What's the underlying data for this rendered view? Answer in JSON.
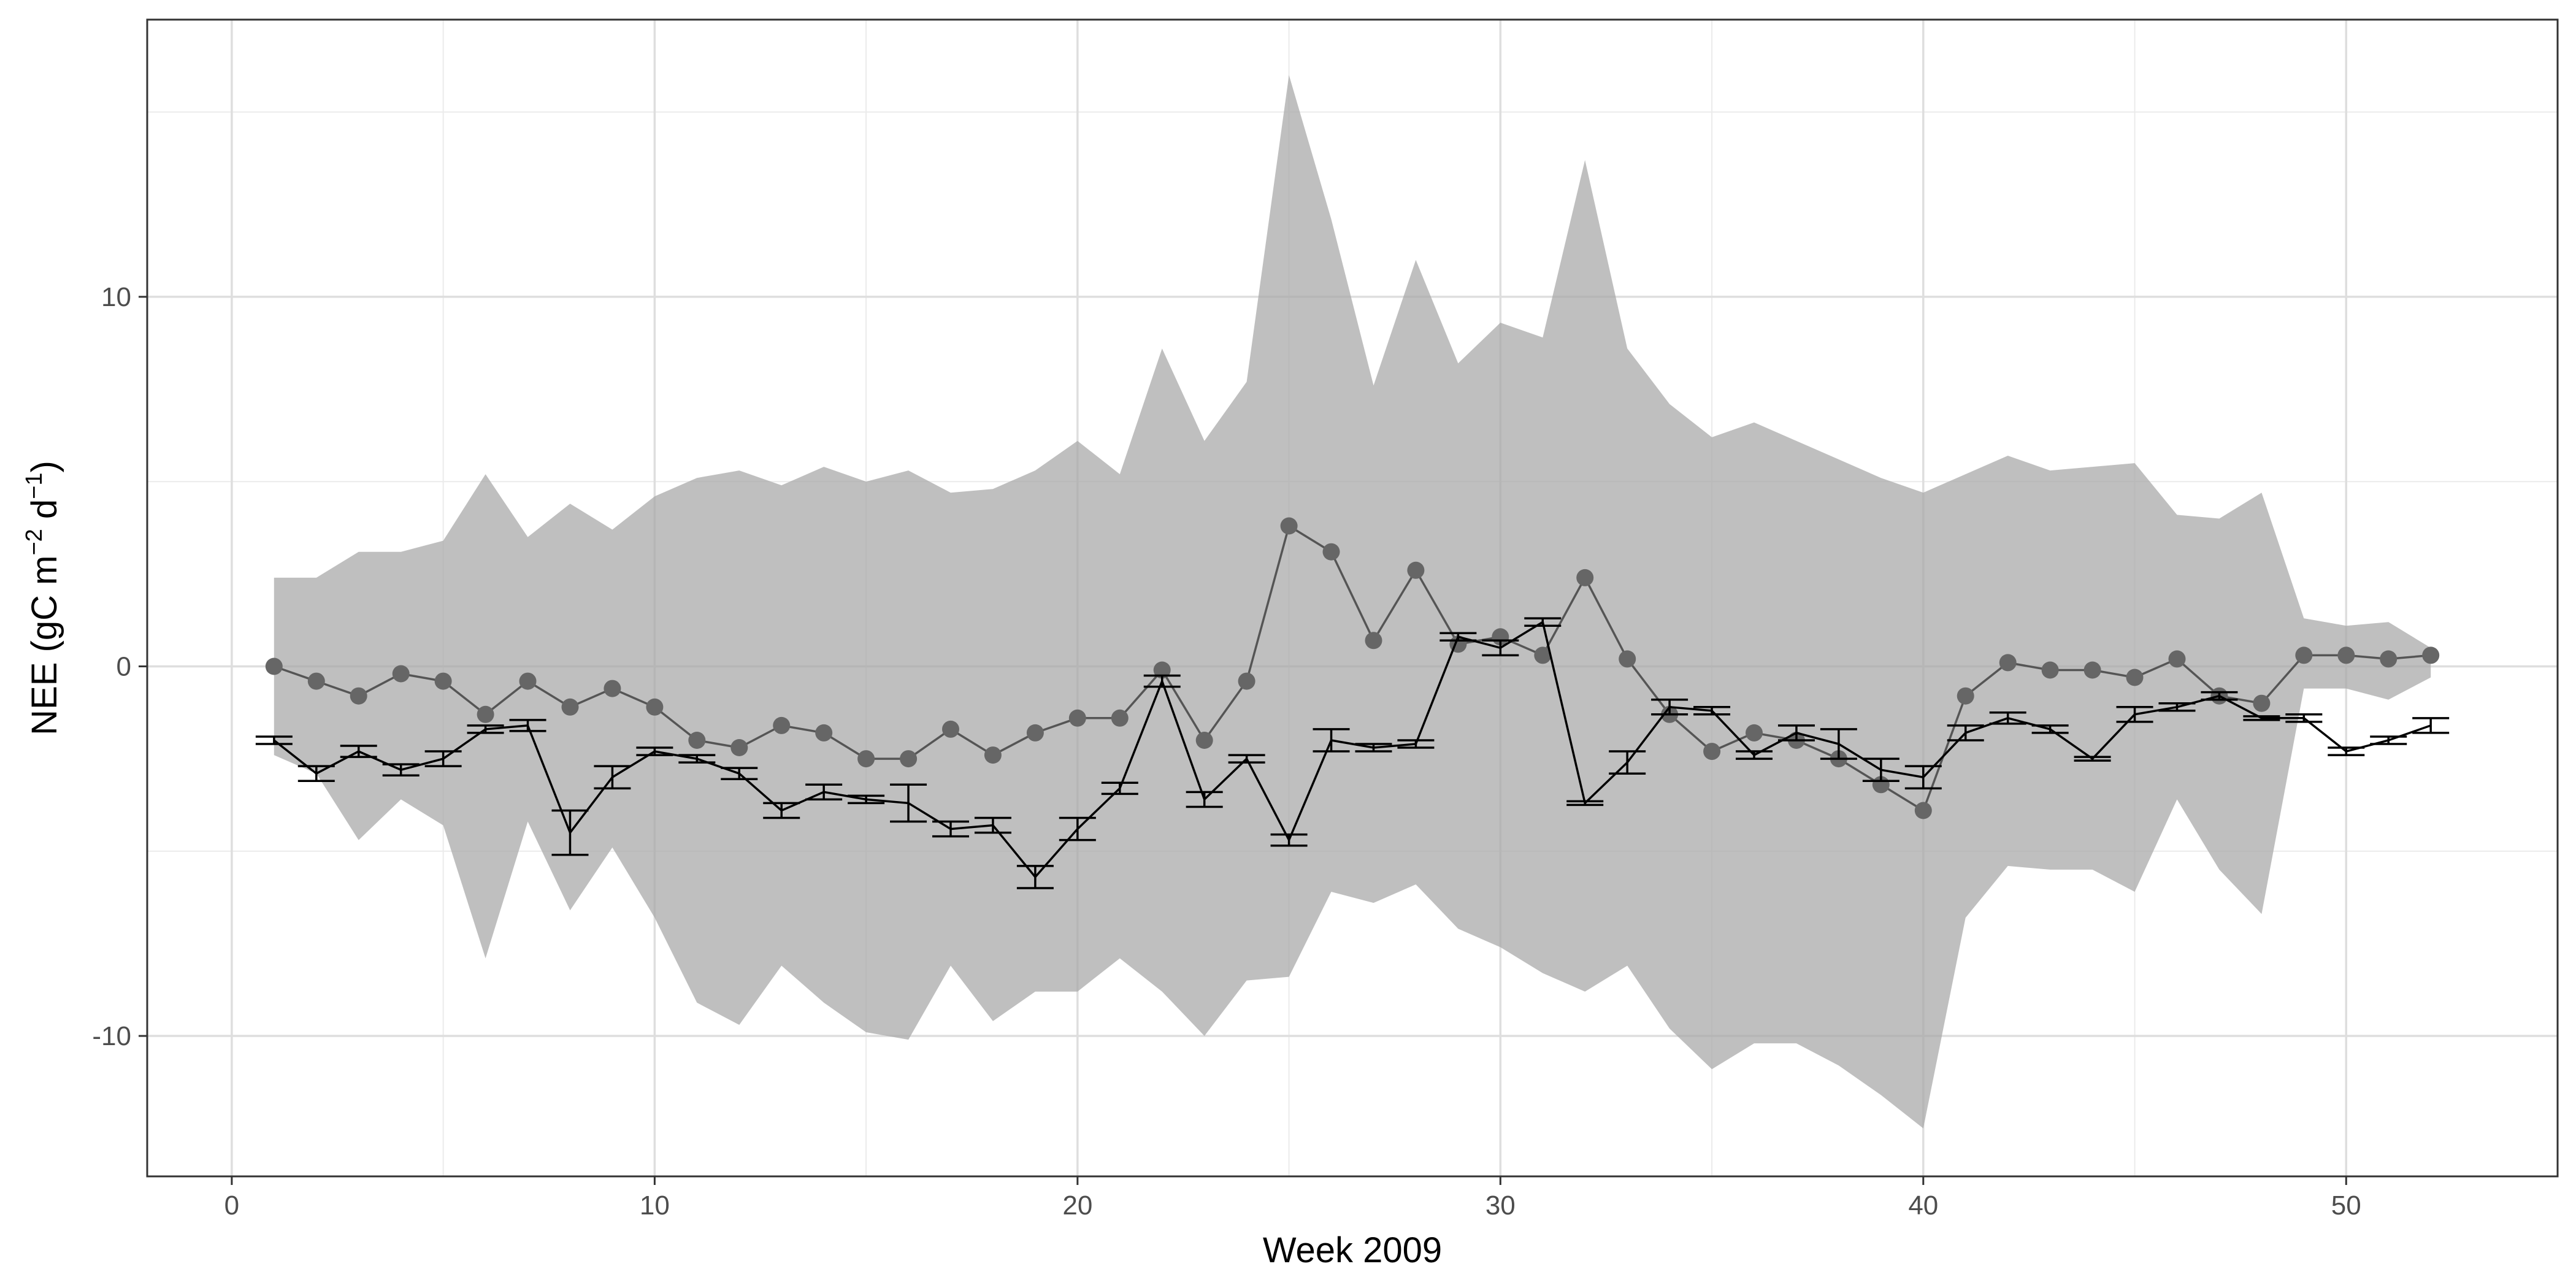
{
  "chart_data": {
    "type": "line",
    "xlabel": "Week 2009",
    "ylabel_main": "NEE (gC m",
    "ylabel_sup1": "−2",
    "ylabel_mid": " d",
    "ylabel_sup2": "−1",
    "ylabel_end": ")",
    "xlim": [
      -2,
      55
    ],
    "ylim": [
      -13.8,
      17.5
    ],
    "xticks": [
      0,
      10,
      20,
      30,
      40,
      50
    ],
    "xtick_labels": [
      "0",
      "10",
      "20",
      "30",
      "40",
      "50"
    ],
    "yticks": [
      -10,
      0,
      10
    ],
    "ytick_labels": [
      "-10",
      "0",
      "10"
    ],
    "grid": true,
    "x": [
      1,
      2,
      3,
      4,
      5,
      6,
      7,
      8,
      9,
      10,
      11,
      12,
      13,
      14,
      15,
      16,
      17,
      18,
      19,
      20,
      21,
      22,
      23,
      24,
      25,
      26,
      27,
      28,
      29,
      30,
      31,
      32,
      33,
      34,
      35,
      36,
      37,
      38,
      39,
      40,
      41,
      42,
      43,
      44,
      45,
      46,
      47,
      48,
      49,
      50,
      51,
      52
    ],
    "series": [
      {
        "kind": "band",
        "upper": [
          2.4,
          2.4,
          3.1,
          3.1,
          3.4,
          5.2,
          3.5,
          4.4,
          3.7,
          4.6,
          5.1,
          5.3,
          4.9,
          5.4,
          5.0,
          5.3,
          4.7,
          4.8,
          5.3,
          6.1,
          5.2,
          8.6,
          6.1,
          7.7,
          16.0,
          12.1,
          7.6,
          11.0,
          8.2,
          9.3,
          8.9,
          13.7,
          8.6,
          7.1,
          6.2,
          6.6,
          6.1,
          5.6,
          5.1,
          4.7,
          5.2,
          5.7,
          5.3,
          5.4,
          5.5,
          4.1,
          4.0,
          4.7,
          1.3,
          1.1,
          1.2,
          0.5
        ],
        "lower": [
          -2.4,
          -2.9,
          -4.7,
          -3.6,
          -4.3,
          -7.9,
          -4.2,
          -6.6,
          -4.9,
          -6.8,
          -9.1,
          -9.7,
          -8.1,
          -9.1,
          -9.9,
          -10.1,
          -8.1,
          -9.6,
          -8.8,
          -8.8,
          -7.9,
          -8.8,
          -10.0,
          -8.5,
          -8.4,
          -6.1,
          -6.4,
          -5.9,
          -7.1,
          -7.6,
          -8.3,
          -8.8,
          -8.1,
          -9.8,
          -10.9,
          -10.2,
          -10.2,
          -10.8,
          -11.6,
          -12.5,
          -6.8,
          -5.4,
          -5.5,
          -5.5,
          -6.1,
          -3.6,
          -5.5,
          -6.7,
          -0.6,
          -0.6,
          -0.9,
          -0.3
        ]
      },
      {
        "kind": "points",
        "values": [
          0.0,
          -0.4,
          -0.8,
          -0.2,
          -0.4,
          -1.3,
          -0.4,
          -1.1,
          -0.6,
          -1.1,
          -2.0,
          -2.2,
          -1.6,
          -1.8,
          -2.5,
          -2.5,
          -1.7,
          -2.4,
          -1.8,
          -1.4,
          -1.4,
          -0.1,
          -2.0,
          -0.4,
          3.8,
          3.1,
          0.7,
          2.6,
          0.6,
          0.8,
          0.3,
          2.4,
          0.2,
          -1.3,
          -2.3,
          -1.8,
          -2.0,
          -2.5,
          -3.2,
          -3.9,
          -0.8,
          0.1,
          -0.1,
          -0.1,
          -0.3,
          0.2,
          -0.8,
          -1.0,
          0.3,
          0.3,
          0.2,
          0.3
        ]
      },
      {
        "kind": "errorbar-line",
        "values": [
          -2.0,
          -2.9,
          -2.3,
          -2.8,
          -2.5,
          -1.7,
          -1.6,
          -4.5,
          -3.0,
          -2.3,
          -2.5,
          -2.9,
          -3.9,
          -3.4,
          -3.6,
          -3.7,
          -4.4,
          -4.3,
          -5.7,
          -4.4,
          -3.3,
          -0.4,
          -3.6,
          -2.5,
          -4.7,
          -2.0,
          -2.2,
          -2.1,
          0.8,
          0.5,
          1.2,
          -3.7,
          -2.6,
          -1.1,
          -1.2,
          -2.4,
          -1.8,
          -2.1,
          -2.8,
          -3.0,
          -1.8,
          -1.4,
          -1.7,
          -2.5,
          -1.3,
          -1.1,
          -0.8,
          -1.4,
          -1.4,
          -2.3,
          -2.0,
          -1.6
        ],
        "errors": [
          0.1,
          0.2,
          0.15,
          0.15,
          0.2,
          0.1,
          0.15,
          0.6,
          0.3,
          0.1,
          0.1,
          0.15,
          0.2,
          0.2,
          0.1,
          0.5,
          0.2,
          0.2,
          0.3,
          0.3,
          0.15,
          0.15,
          0.2,
          0.1,
          0.15,
          0.3,
          0.1,
          0.1,
          0.1,
          0.2,
          0.1,
          0.05,
          0.3,
          0.2,
          0.1,
          0.1,
          0.2,
          0.4,
          0.3,
          0.3,
          0.2,
          0.15,
          0.1,
          0.05,
          0.2,
          0.1,
          0.1,
          0.05,
          0.1,
          0.1,
          0.1,
          0.2
        ]
      }
    ]
  }
}
